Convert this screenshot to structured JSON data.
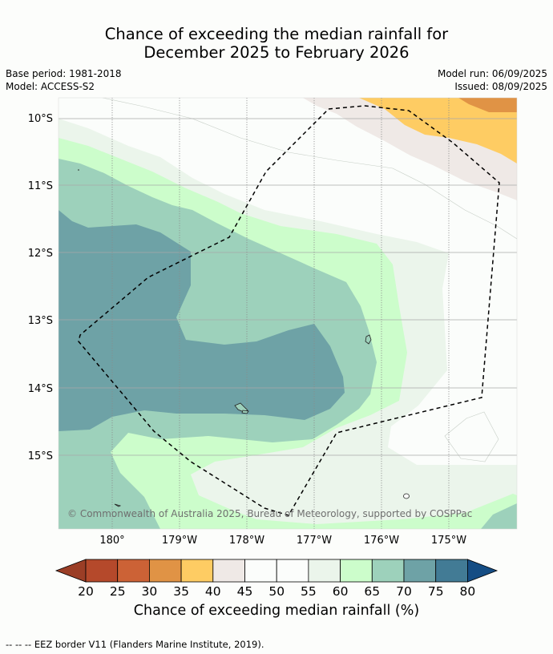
{
  "title_line1": "Chance of exceeding the median rainfall for",
  "title_line2": "December 2025 to February 2026",
  "base_period": "Base period: 1981-2018",
  "model": "Model: ACCESS-S2",
  "model_run": "Model run: 06/09/2025",
  "issued": "Issued: 08/09/2025",
  "lat_labels": [
    "10°S",
    "11°S",
    "12°S",
    "13°S",
    "14°S",
    "15°S"
  ],
  "lon_labels": [
    "180°",
    "179°W",
    "178°W",
    "177°W",
    "176°W",
    "175°W"
  ],
  "copyright": "© Commonwealth of Australia 2025, Bureau of Meteorology, supported by COSPPac",
  "colorbar": {
    "title": "Chance of exceeding median rainfall (%)",
    "ticks": [
      "20",
      "25",
      "30",
      "35",
      "40",
      "45",
      "50",
      "55",
      "60",
      "65",
      "70",
      "75",
      "80"
    ],
    "colors": {
      "below_20": "#9b3e26",
      "c20_25": "#b5492b",
      "c25_30": "#cc6236",
      "c30_35": "#e09345",
      "c35_40": "#fecc63",
      "c40_45": "#efe9e6",
      "c45_50": "#fbfdfb",
      "c50_55": "#fbfdfb",
      "c55_60": "#ebf5eb",
      "c60_65": "#ccfdcb",
      "c65_70": "#9dd1bb",
      "c70_75": "#6ea2a6",
      "c75_80": "#427b95",
      "above_80": "#154d84"
    }
  },
  "footnote": "--  --  -- EEZ border V11 (Flanders Marine Institute, 2019)."
}
